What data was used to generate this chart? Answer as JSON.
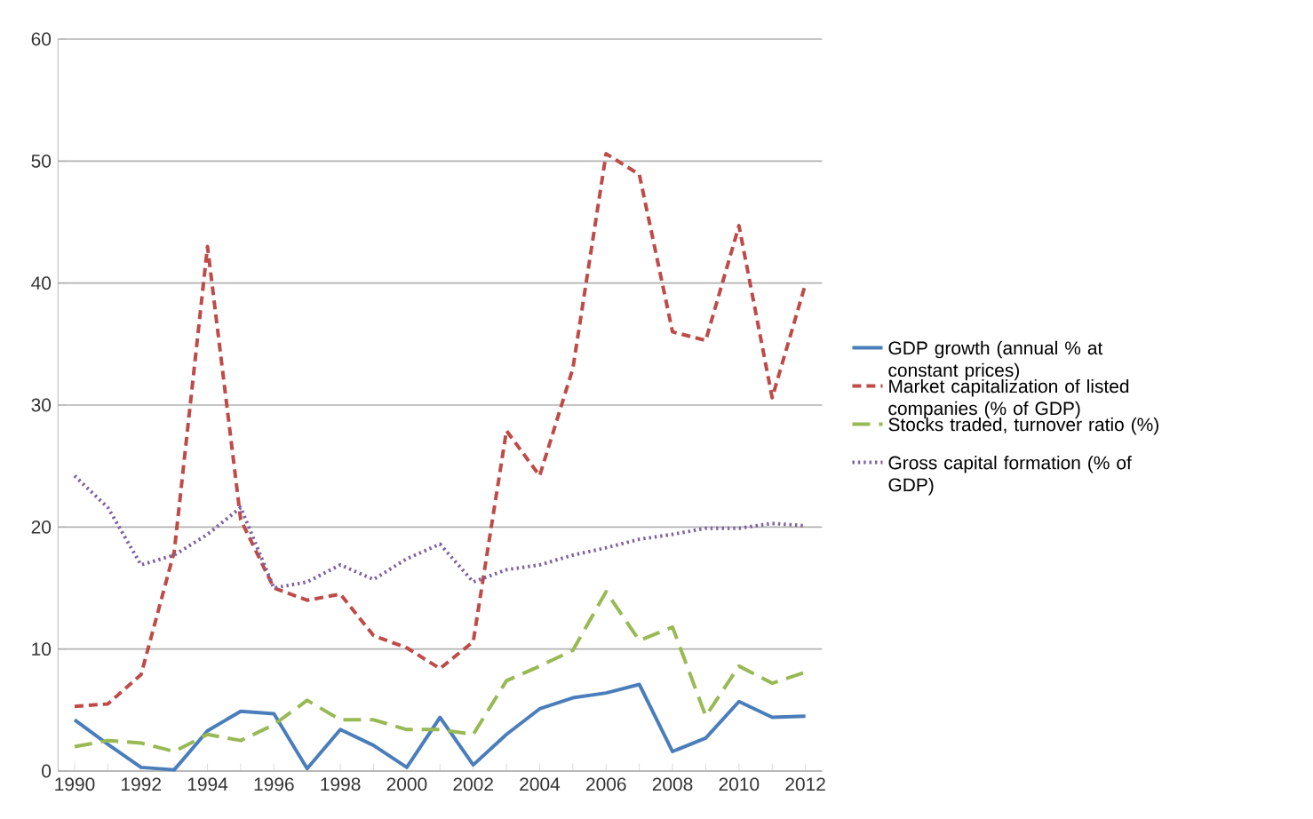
{
  "chart_data": {
    "type": "line",
    "categories": [
      "1990",
      null,
      "1992",
      null,
      "1994",
      null,
      "1996",
      null,
      "1998",
      null,
      "2000",
      null,
      "2002",
      null,
      "2004",
      null,
      "2006",
      null,
      "2008",
      null,
      "2010",
      null,
      "2012"
    ],
    "series": [
      {
        "name": "GDP growth (annual % at constant prices)",
        "color": "#4a7ebb",
        "line_style": "solid",
        "values": [
          4.2,
          2.2,
          0.3,
          0.1,
          3.3,
          4.9,
          4.7,
          0.2,
          3.4,
          2.1,
          0.3,
          4.4,
          0.5,
          3.0,
          5.1,
          6.0,
          6.4,
          7.1,
          1.6,
          2.7,
          5.7,
          4.4,
          4.5
        ]
      },
      {
        "name": "Market capitalization of listed companies (% of GDP)",
        "color": "#be4b48",
        "line_style": "dashed",
        "values": [
          5.3,
          5.5,
          7.9,
          18,
          43.0,
          20.6,
          15.0,
          14.0,
          14.5,
          11.1,
          10.1,
          8.4,
          10.6,
          27.9,
          24.2,
          33,
          50.6,
          48.9,
          36.0,
          35.3,
          44.7,
          30.6,
          39.9
        ]
      },
      {
        "name": "Stocks traded, turnover ratio (%)",
        "color": "#98b954",
        "line_style": "dashed",
        "values": [
          2.0,
          2.5,
          2.3,
          1.6,
          3.0,
          2.5,
          3.8,
          5.8,
          4.2,
          4.2,
          3.4,
          3.4,
          3.0,
          7.4,
          8.6,
          9.9,
          14.7,
          10.7,
          11.8,
          4.5,
          8.6,
          7.2,
          8.1
        ]
      },
      {
        "name": "Gross capital formation (% of GDP)",
        "color": "#7d60a0",
        "line_style": "dotted",
        "values": [
          24.2,
          21.6,
          16.9,
          17.7,
          19.4,
          21.6,
          15.0,
          15.5,
          16.9,
          15.7,
          17.4,
          18.6,
          15.5,
          16.5,
          16.9,
          17.7,
          18.3,
          19.0,
          19.4,
          19.9,
          19.9,
          20.3,
          20.1
        ]
      }
    ],
    "ylim": [
      0,
      60
    ],
    "yticks": [
      0,
      10,
      20,
      30,
      40,
      50,
      60
    ],
    "grid": "y",
    "legend": "right"
  }
}
